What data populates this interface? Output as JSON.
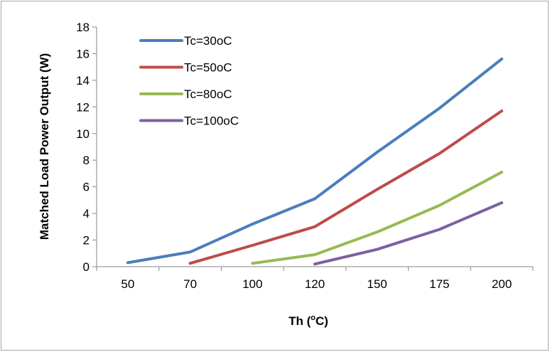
{
  "chart_data": {
    "type": "line",
    "categories": [
      "50",
      "70",
      "100",
      "120",
      "150",
      "175",
      "200"
    ],
    "xlabel": "Th (oC)",
    "xlabel_parts": [
      "Th (",
      "o",
      "C)"
    ],
    "ylabel": "Matched Load Power Output (W)",
    "ylim": [
      0,
      18
    ],
    "yticks": [
      0,
      2,
      4,
      6,
      8,
      10,
      12,
      14,
      16,
      18
    ],
    "grid": false,
    "legend_position": "top-left",
    "series": [
      {
        "name": "Tc=30oC",
        "color": "#4a7ebb",
        "values": [
          0.3,
          1.1,
          3.2,
          5.1,
          8.6,
          11.9,
          15.6
        ]
      },
      {
        "name": "Tc=50oC",
        "color": "#be4b48",
        "values": [
          null,
          0.25,
          1.6,
          3.0,
          5.8,
          8.5,
          11.7
        ]
      },
      {
        "name": "Tc=80oC",
        "color": "#98b954",
        "values": [
          null,
          null,
          0.25,
          0.9,
          2.6,
          4.6,
          7.1
        ]
      },
      {
        "name": "Tc=100oC",
        "color": "#7d60a0",
        "values": [
          null,
          null,
          null,
          0.2,
          1.3,
          2.8,
          4.8
        ]
      }
    ]
  }
}
